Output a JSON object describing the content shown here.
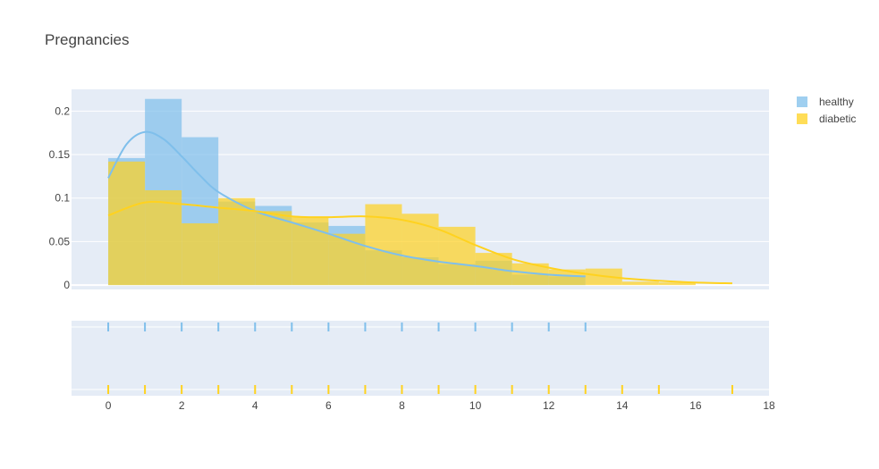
{
  "chart_data": {
    "type": "histogram",
    "title": "Pregnancies",
    "xlabel": "",
    "ylabel": "",
    "xlim": [
      -1,
      18
    ],
    "ylim": [
      -0.005,
      0.225
    ],
    "x_ticks": [
      0,
      2,
      4,
      6,
      8,
      10,
      12,
      14,
      16,
      18
    ],
    "y_ticks": [
      0,
      0.05,
      0.1,
      0.15,
      0.2
    ],
    "y_tick_labels": [
      "0",
      "0.05",
      "0.1",
      "0.15",
      "0.2"
    ],
    "grid": true,
    "legend_position": "top-right",
    "bin_width": 1,
    "series": [
      {
        "name": "healthy",
        "color": "#7fbfeb",
        "bin_starts": [
          0,
          1,
          2,
          3,
          4,
          5,
          6,
          7,
          8,
          9,
          10,
          11,
          12
        ],
        "density": [
          0.146,
          0.214,
          0.17,
          0.096,
          0.091,
          0.072,
          0.068,
          0.04,
          0.032,
          0.024,
          0.028,
          0.012,
          0.01
        ],
        "kde_x": [
          0,
          0.5,
          1,
          1.5,
          2,
          2.5,
          3,
          4,
          5,
          6,
          7,
          8,
          9,
          10,
          11,
          12,
          13
        ],
        "kde_y": [
          0.123,
          0.162,
          0.176,
          0.168,
          0.148,
          0.126,
          0.107,
          0.085,
          0.072,
          0.059,
          0.045,
          0.034,
          0.027,
          0.022,
          0.016,
          0.012,
          0.01
        ],
        "rug": [
          0,
          1,
          2,
          3,
          4,
          5,
          6,
          7,
          8,
          9,
          10,
          11,
          12,
          13
        ]
      },
      {
        "name": "diabetic",
        "color": "#ffd21f",
        "bin_starts": [
          0,
          1,
          2,
          3,
          4,
          5,
          6,
          7,
          8,
          9,
          10,
          11,
          12,
          13,
          14,
          15
        ],
        "density": [
          0.142,
          0.109,
          0.071,
          0.1,
          0.085,
          0.078,
          0.059,
          0.093,
          0.082,
          0.067,
          0.037,
          0.025,
          0.018,
          0.019,
          0.004,
          0.003
        ],
        "kde_x": [
          0,
          1,
          2,
          3,
          4,
          5,
          6,
          7,
          8,
          9,
          10,
          11,
          12,
          13,
          14,
          15,
          16,
          17
        ],
        "kde_y": [
          0.08,
          0.095,
          0.093,
          0.089,
          0.085,
          0.079,
          0.078,
          0.079,
          0.075,
          0.064,
          0.046,
          0.03,
          0.02,
          0.013,
          0.008,
          0.005,
          0.003,
          0.002
        ],
        "rug": [
          0,
          1,
          2,
          3,
          4,
          5,
          6,
          7,
          8,
          9,
          10,
          11,
          12,
          13,
          14,
          15,
          17
        ]
      }
    ]
  }
}
